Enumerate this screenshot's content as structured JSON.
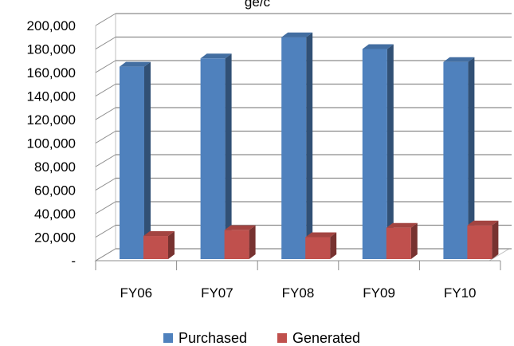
{
  "chart_data": {
    "type": "bar",
    "title": "ge/c",
    "categories": [
      "FY06",
      "FY07",
      "FY08",
      "FY09",
      "FY10"
    ],
    "series": [
      {
        "name": "Purchased",
        "values": [
          165000,
          172000,
          190000,
          180000,
          169000
        ],
        "color": "#4f81bd"
      },
      {
        "name": "Generated",
        "values": [
          21000,
          26000,
          20000,
          28000,
          30000
        ],
        "color": "#c0504d"
      }
    ],
    "yticks": [
      0,
      20000,
      40000,
      60000,
      80000,
      100000,
      120000,
      140000,
      160000,
      180000,
      200000
    ],
    "ytick_labels": [
      "-",
      "20,000",
      "40,000",
      "60,000",
      "80,000",
      "100,000",
      "120,000",
      "140,000",
      "160,000",
      "180,000",
      "200,000"
    ],
    "ylim": [
      0,
      200000
    ],
    "grid": true,
    "three_d": true,
    "legend_position": "bottom"
  }
}
